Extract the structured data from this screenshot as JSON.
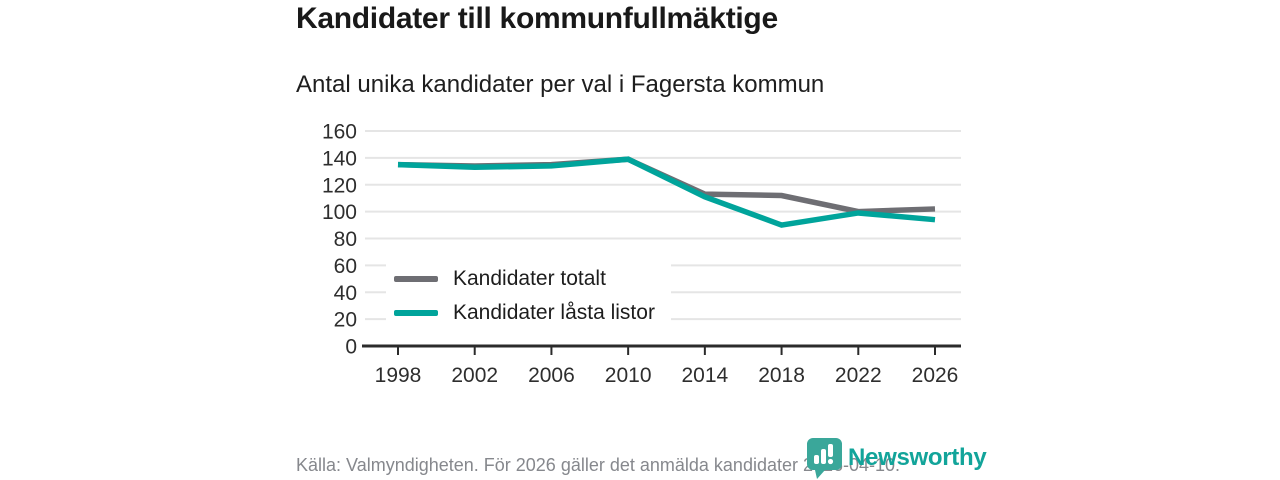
{
  "header": {
    "title": "Kandidater till kommunfullmäktige",
    "subtitle": "Antal unika kandidater per val i Fagersta kommun"
  },
  "chart_data": {
    "type": "line",
    "categories": [
      "1998",
      "2002",
      "2006",
      "2010",
      "2014",
      "2018",
      "2022",
      "2026"
    ],
    "series": [
      {
        "name": "Kandidater totalt",
        "color": "#6e6e73",
        "values": [
          135,
          134,
          135,
          139,
          113,
          112,
          100,
          102
        ]
      },
      {
        "name": "Kandidater låsta listor",
        "color": "#00a49b",
        "values": [
          135,
          133,
          134,
          139,
          111,
          90,
          99,
          94
        ]
      }
    ],
    "title": "Kandidater till kommunfullmäktige",
    "xlabel": "",
    "ylabel": "",
    "ylim": [
      0,
      160
    ],
    "ytick_step": 20,
    "grid": true,
    "legend_position": "inside-left-bottom",
    "gridline_color": "#e5e5e5",
    "axis_color": "#2b2b2b",
    "tick_label_color": "#2e2e2e"
  },
  "footer": {
    "source": "Källa: Valmyndigheten. För 2026 gäller det anmälda kandidater 2026-04-10.",
    "brand": "Newsworthy",
    "brand_color": "#12a49a",
    "logo_icon": "speech-bubble-bar-chart-icon"
  }
}
